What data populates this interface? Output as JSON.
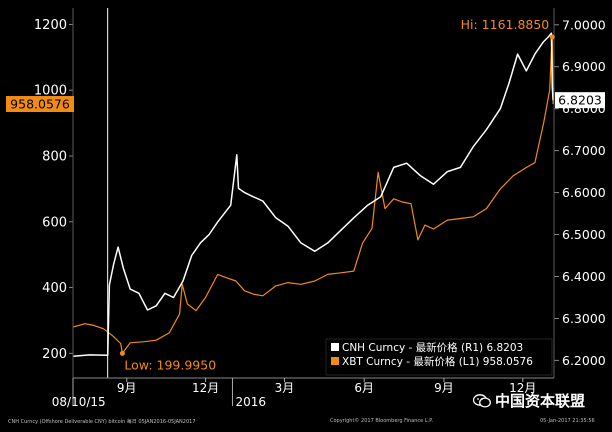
{
  "chart_data": {
    "type": "line",
    "left_axis": {
      "min": 125,
      "max": 1250,
      "ticks": [
        200,
        400,
        600,
        800,
        1000,
        1200
      ]
    },
    "right_axis": {
      "min": 6.158,
      "max": 7.04,
      "ticks": [
        "6.2000",
        "6.3000",
        "6.4000",
        "6.5000",
        "6.6000",
        "6.7000",
        "6.8000",
        "6.9000",
        "7.0000"
      ]
    },
    "x_axis": {
      "start": "2015-07-01",
      "end": "2017-01-06",
      "month_ticks": [
        "2015-09-01",
        "2015-12-01",
        "2016-03-01",
        "2016-06-01",
        "2016-09-01",
        "2016-12-01"
      ],
      "month_labels": [
        "9月",
        "12月",
        "3月",
        "6月",
        "9月",
        "12月"
      ],
      "year_ticks": [
        "2015-07-01",
        "2016-01-01"
      ],
      "year_labels": [
        "2015",
        "2016"
      ]
    },
    "series": [
      {
        "name": "CNH Curncy - 最新价格 (R1) 6.8203",
        "axis": "right",
        "color": "#ffffff",
        "values": [
          [
            "2015-07-01",
            6.21
          ],
          [
            "2015-07-20",
            6.213
          ],
          [
            "2015-08-10",
            6.212
          ],
          [
            "2015-08-12",
            6.38
          ],
          [
            "2015-08-17",
            6.43
          ],
          [
            "2015-08-22",
            6.47
          ],
          [
            "2015-08-28",
            6.42
          ],
          [
            "2015-09-05",
            6.37
          ],
          [
            "2015-09-15",
            6.36
          ],
          [
            "2015-09-25",
            6.32
          ],
          [
            "2015-10-05",
            6.33
          ],
          [
            "2015-10-15",
            6.36
          ],
          [
            "2015-10-25",
            6.35
          ],
          [
            "2015-11-05",
            6.39
          ],
          [
            "2015-11-15",
            6.45
          ],
          [
            "2015-11-25",
            6.48
          ],
          [
            "2015-12-05",
            6.5
          ],
          [
            "2015-12-15",
            6.53
          ],
          [
            "2015-12-30",
            6.57
          ],
          [
            "2016-01-06",
            6.69
          ],
          [
            "2016-01-08",
            6.61
          ],
          [
            "2016-01-15",
            6.6
          ],
          [
            "2016-01-25",
            6.59
          ],
          [
            "2016-02-05",
            6.58
          ],
          [
            "2016-02-20",
            6.54
          ],
          [
            "2016-03-05",
            6.52
          ],
          [
            "2016-03-20",
            6.48
          ],
          [
            "2016-04-05",
            6.46
          ],
          [
            "2016-04-20",
            6.48
          ],
          [
            "2016-05-05",
            6.51
          ],
          [
            "2016-05-20",
            6.54
          ],
          [
            "2016-06-05",
            6.57
          ],
          [
            "2016-06-20",
            6.59
          ],
          [
            "2016-07-05",
            6.66
          ],
          [
            "2016-07-20",
            6.67
          ],
          [
            "2016-08-05",
            6.64
          ],
          [
            "2016-08-20",
            6.62
          ],
          [
            "2016-09-05",
            6.65
          ],
          [
            "2016-09-20",
            6.66
          ],
          [
            "2016-10-05",
            6.71
          ],
          [
            "2016-10-20",
            6.75
          ],
          [
            "2016-11-05",
            6.8
          ],
          [
            "2016-11-15",
            6.86
          ],
          [
            "2016-11-25",
            6.93
          ],
          [
            "2016-12-05",
            6.89
          ],
          [
            "2016-12-15",
            6.93
          ],
          [
            "2016-12-25",
            6.96
          ],
          [
            "2016-12-30",
            6.97
          ],
          [
            "2017-01-03",
            6.98
          ],
          [
            "2017-01-04",
            6.85
          ],
          [
            "2017-01-05",
            6.82
          ]
        ]
      },
      {
        "name": "XBT Curncy - 最新价格 (L1) 958.0576",
        "axis": "left",
        "color": "#f28b14",
        "values": [
          [
            "2015-07-01",
            280
          ],
          [
            "2015-07-15",
            290
          ],
          [
            "2015-07-25",
            285
          ],
          [
            "2015-08-05",
            275
          ],
          [
            "2015-08-15",
            255
          ],
          [
            "2015-08-25",
            230
          ],
          [
            "2015-08-27",
            199.995
          ],
          [
            "2015-09-05",
            232
          ],
          [
            "2015-09-20",
            235
          ],
          [
            "2015-10-05",
            240
          ],
          [
            "2015-10-20",
            262
          ],
          [
            "2015-11-01",
            320
          ],
          [
            "2015-11-04",
            410
          ],
          [
            "2015-11-10",
            350
          ],
          [
            "2015-11-20",
            330
          ],
          [
            "2015-12-01",
            370
          ],
          [
            "2015-12-15",
            440
          ],
          [
            "2015-12-25",
            430
          ],
          [
            "2016-01-05",
            420
          ],
          [
            "2016-01-15",
            390
          ],
          [
            "2016-01-25",
            380
          ],
          [
            "2016-02-05",
            375
          ],
          [
            "2016-02-20",
            405
          ],
          [
            "2016-03-05",
            415
          ],
          [
            "2016-03-20",
            410
          ],
          [
            "2016-04-05",
            420
          ],
          [
            "2016-04-20",
            440
          ],
          [
            "2016-05-05",
            445
          ],
          [
            "2016-05-20",
            450
          ],
          [
            "2016-05-30",
            535
          ],
          [
            "2016-06-10",
            580
          ],
          [
            "2016-06-17",
            750
          ],
          [
            "2016-06-25",
            640
          ],
          [
            "2016-07-05",
            670
          ],
          [
            "2016-07-15",
            660
          ],
          [
            "2016-07-25",
            655
          ],
          [
            "2016-08-02",
            545
          ],
          [
            "2016-08-10",
            590
          ],
          [
            "2016-08-20",
            578
          ],
          [
            "2016-09-05",
            605
          ],
          [
            "2016-09-20",
            610
          ],
          [
            "2016-10-05",
            615
          ],
          [
            "2016-10-20",
            640
          ],
          [
            "2016-11-05",
            700
          ],
          [
            "2016-11-20",
            740
          ],
          [
            "2016-12-05",
            765
          ],
          [
            "2016-12-15",
            780
          ],
          [
            "2016-12-25",
            900
          ],
          [
            "2017-01-01",
            1000
          ],
          [
            "2017-01-03",
            1120
          ],
          [
            "2017-01-04",
            1161.885
          ],
          [
            "2017-01-05",
            958.0576
          ]
        ]
      }
    ],
    "annotations": {
      "hi": {
        "label": "Hi: 1161.8850",
        "date": "2017-01-04",
        "value": 1161.885
      },
      "low": {
        "label": "Low: 199.9950",
        "date": "2015-08-27",
        "value": 199.995
      },
      "left_last": {
        "label": "958.0576",
        "value": 958.0576
      },
      "right_last": {
        "label": "6.8203",
        "value": 6.8203
      },
      "cursor": {
        "label": "08/10/15",
        "date": "2015-08-10"
      }
    },
    "legend": {
      "placement": "bottom-right",
      "items": [
        {
          "label": "CNH Curncy - 最新价格 (R1) 6.8203",
          "color": "#ffffff"
        },
        {
          "label": "XBT Curncy - 最新价格 (L1) 958.0576",
          "color": "#f28b14"
        }
      ]
    }
  },
  "footer": {
    "left": "CNH Curncy (Offshore Deliverable CNY) bitcoin  每日 05JAN2016-05JAN2017",
    "copyright": "Copyright© 2017 Bloomberg Finance L.P.",
    "date": "05-Jan-2017 21:35:56"
  },
  "watermark": "中国资本联盟"
}
